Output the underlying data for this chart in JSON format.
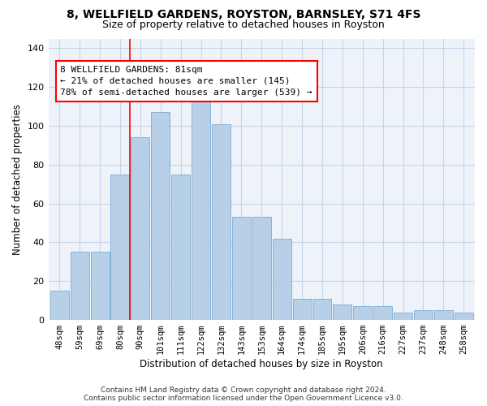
{
  "title_line1": "8, WELLFIELD GARDENS, ROYSTON, BARNSLEY, S71 4FS",
  "title_line2": "Size of property relative to detached houses in Royston",
  "xlabel": "Distribution of detached houses by size in Royston",
  "ylabel": "Number of detached properties",
  "footer_line1": "Contains HM Land Registry data © Crown copyright and database right 2024.",
  "footer_line2": "Contains public sector information licensed under the Open Government Licence v3.0.",
  "categories": [
    "48sqm",
    "59sqm",
    "69sqm",
    "80sqm",
    "90sqm",
    "101sqm",
    "111sqm",
    "122sqm",
    "132sqm",
    "143sqm",
    "153sqm",
    "164sqm",
    "174sqm",
    "185sqm",
    "195sqm",
    "206sqm",
    "216sqm",
    "227sqm",
    "237sqm",
    "248sqm",
    "258sqm"
  ],
  "values": [
    15,
    35,
    35,
    75,
    94,
    107,
    75,
    113,
    101,
    53,
    53,
    42,
    11,
    11,
    8,
    7,
    7,
    4,
    5,
    5,
    4
  ],
  "bar_color": "#b8cfe8",
  "bar_edge_color": "#7aadd4",
  "grid_color": "#c8d4e8",
  "vline_color": "red",
  "vline_x": 3.5,
  "annotation_text": "8 WELLFIELD GARDENS: 81sqm\n← 21% of detached houses are smaller (145)\n78% of semi-detached houses are larger (539) →",
  "annotation_fontsize": 8,
  "ylim": [
    0,
    145
  ],
  "yticks": [
    0,
    20,
    40,
    60,
    80,
    100,
    120,
    140
  ],
  "background_color": "#eef2f9",
  "title_fontsize": 10,
  "subtitle_fontsize": 9,
  "xlabel_fontsize": 8.5,
  "ylabel_fontsize": 8.5,
  "tick_fontsize": 8,
  "xtick_fontsize": 7.5
}
